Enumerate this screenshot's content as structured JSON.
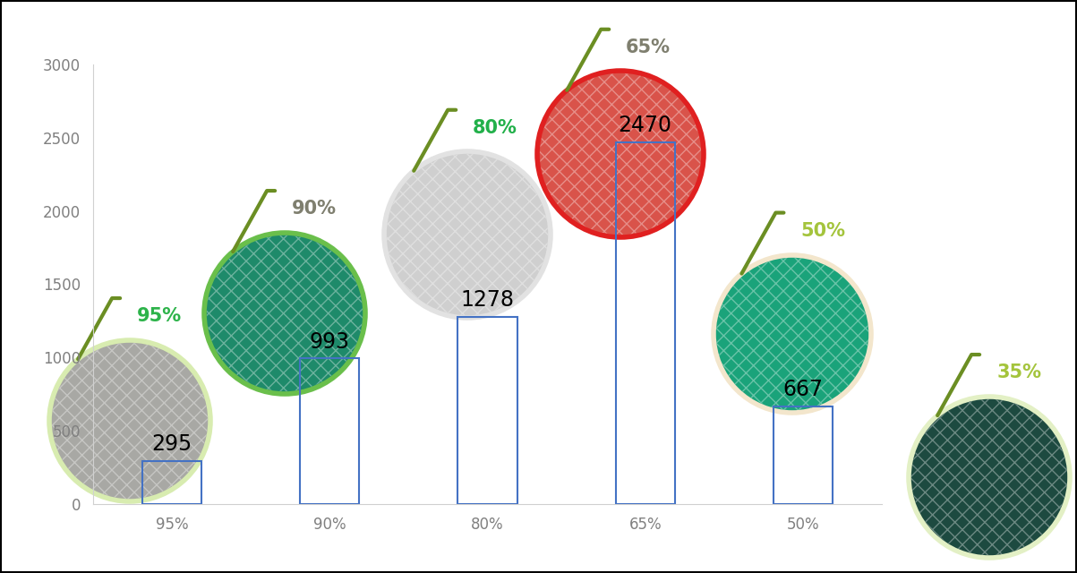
{
  "chart_data": {
    "type": "bar",
    "categories": [
      "95%",
      "90%",
      "80%",
      "65%",
      "50%"
    ],
    "values": [
      295,
      993,
      1278,
      2470,
      667
    ],
    "color": "#4472c4",
    "ylim": [
      0,
      3000
    ],
    "yticks": [
      0,
      500,
      1000,
      1500,
      2000,
      2500,
      3000
    ],
    "data_labels": true,
    "annotations": [
      "95%",
      "90%",
      "80%",
      "65%",
      "50%",
      "35%"
    ]
  }
}
